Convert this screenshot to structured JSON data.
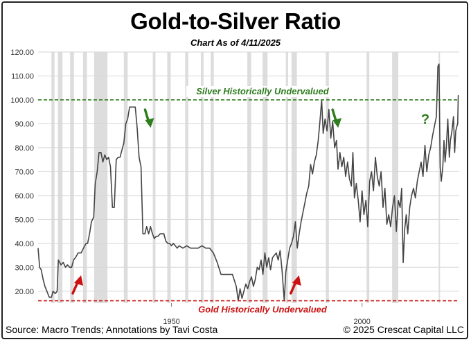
{
  "header": {
    "title": "Gold-to-Silver Ratio",
    "subtitle": "Chart As of 4/11/2025"
  },
  "footer": {
    "source": "Source: Macro Trends; Annotations by Tavi Costa",
    "copyright": "© 2025 Crescat Capital LLC"
  },
  "colors": {
    "line": "#444444",
    "upper_ref": "#2e7d1e",
    "lower_ref": "#cc1111",
    "recession_band": "#dddddd",
    "grid": "#d6d6d6"
  },
  "chart_data": {
    "type": "line",
    "xlim": [
      1915,
      2025.5
    ],
    "ylim": [
      15,
      120
    ],
    "yticks": [
      20,
      30,
      40,
      50,
      60,
      70,
      80,
      90,
      100,
      110,
      120
    ],
    "ytick_labels": [
      "20.00",
      "30.00",
      "40.00",
      "50.00",
      "60.00",
      "70.00",
      "80.00",
      "90.00",
      "100.00",
      "110.00",
      "120.00"
    ],
    "xticks": [
      1950,
      2000
    ],
    "xtick_labels": [
      "1950",
      "2000"
    ],
    "grid": true,
    "series": [
      {
        "points": [
          [
            1915.0,
            38
          ],
          [
            1915.4,
            30
          ],
          [
            1915.8,
            29
          ],
          [
            1916.3,
            25
          ],
          [
            1916.8,
            22
          ],
          [
            1917.3,
            20
          ],
          [
            1917.9,
            17.5
          ],
          [
            1918.5,
            17.5
          ],
          [
            1918.9,
            20
          ],
          [
            1919.5,
            19
          ],
          [
            1920.0,
            20
          ],
          [
            1920.3,
            33
          ],
          [
            1920.7,
            32
          ],
          [
            1921.0,
            31
          ],
          [
            1921.6,
            32
          ],
          [
            1922.2,
            30
          ],
          [
            1922.7,
            31
          ],
          [
            1923.3,
            30
          ],
          [
            1923.8,
            30
          ],
          [
            1924.3,
            33
          ],
          [
            1924.8,
            34
          ],
          [
            1925.5,
            36
          ],
          [
            1926.3,
            36
          ],
          [
            1926.9,
            38
          ],
          [
            1927.6,
            40
          ],
          [
            1928.0,
            40
          ],
          [
            1928.5,
            44
          ],
          [
            1929.0,
            49
          ],
          [
            1929.6,
            51
          ],
          [
            1930.0,
            65
          ],
          [
            1930.5,
            70
          ],
          [
            1931.0,
            78
          ],
          [
            1931.5,
            78
          ],
          [
            1932.0,
            74
          ],
          [
            1932.5,
            77
          ],
          [
            1933.0,
            75
          ],
          [
            1933.5,
            76
          ],
          [
            1934.0,
            72
          ],
          [
            1934.5,
            55
          ],
          [
            1935.0,
            55
          ],
          [
            1935.5,
            75
          ],
          [
            1936.0,
            76
          ],
          [
            1936.5,
            76
          ],
          [
            1937.0,
            79
          ],
          [
            1937.5,
            82
          ],
          [
            1938.0,
            90
          ],
          [
            1938.5,
            92
          ],
          [
            1939.0,
            97
          ],
          [
            1939.5,
            97
          ],
          [
            1940.0,
            97
          ],
          [
            1940.5,
            97
          ],
          [
            1941.0,
            88
          ],
          [
            1941.5,
            76
          ],
          [
            1942.0,
            72
          ],
          [
            1942.5,
            44
          ],
          [
            1943.0,
            44
          ],
          [
            1943.5,
            47
          ],
          [
            1944.0,
            44
          ],
          [
            1944.5,
            47
          ],
          [
            1945.0,
            44
          ],
          [
            1945.5,
            42
          ],
          [
            1946.0,
            43
          ],
          [
            1946.5,
            43
          ],
          [
            1947.0,
            44
          ],
          [
            1947.5,
            44
          ],
          [
            1948.0,
            44
          ],
          [
            1948.5,
            41
          ],
          [
            1949.0,
            40
          ],
          [
            1949.5,
            40
          ],
          [
            1950.0,
            39
          ],
          [
            1950.5,
            40
          ],
          [
            1951.0,
            39
          ],
          [
            1951.5,
            38
          ],
          [
            1952.0,
            39
          ],
          [
            1953.0,
            38
          ],
          [
            1954.0,
            39
          ],
          [
            1955.0,
            38
          ],
          [
            1956.0,
            38
          ],
          [
            1957.0,
            38
          ],
          [
            1958.0,
            39
          ],
          [
            1959.0,
            38
          ],
          [
            1960.0,
            38
          ],
          [
            1961.0,
            36
          ],
          [
            1962.0,
            32
          ],
          [
            1963.0,
            27
          ],
          [
            1964.0,
            27
          ],
          [
            1965.0,
            27
          ],
          [
            1966.0,
            27
          ],
          [
            1967.0,
            22
          ],
          [
            1967.5,
            16
          ],
          [
            1968.0,
            21
          ],
          [
            1968.5,
            17
          ],
          [
            1969.0,
            20
          ],
          [
            1969.5,
            23
          ],
          [
            1970.0,
            21
          ],
          [
            1970.5,
            24
          ],
          [
            1971.0,
            26
          ],
          [
            1971.5,
            22
          ],
          [
            1972.0,
            25
          ],
          [
            1972.5,
            30
          ],
          [
            1973.0,
            29
          ],
          [
            1973.5,
            33
          ],
          [
            1974.0,
            27
          ],
          [
            1974.5,
            36
          ],
          [
            1975.0,
            30
          ],
          [
            1975.5,
            34
          ],
          [
            1976.0,
            29
          ],
          [
            1976.5,
            34
          ],
          [
            1977.0,
            35
          ],
          [
            1977.5,
            36
          ],
          [
            1978.0,
            33
          ],
          [
            1978.5,
            37
          ],
          [
            1979.0,
            29
          ],
          [
            1979.6,
            16
          ],
          [
            1980.0,
            28
          ],
          [
            1980.5,
            33
          ],
          [
            1981.0,
            38
          ],
          [
            1981.5,
            40
          ],
          [
            1982.0,
            43
          ],
          [
            1982.5,
            49
          ],
          [
            1983.0,
            38
          ],
          [
            1983.5,
            44
          ],
          [
            1984.0,
            49
          ],
          [
            1984.5,
            53
          ],
          [
            1985.0,
            57
          ],
          [
            1985.5,
            61
          ],
          [
            1986.0,
            64
          ],
          [
            1986.5,
            73
          ],
          [
            1987.0,
            69
          ],
          [
            1987.5,
            74
          ],
          [
            1988.0,
            77
          ],
          [
            1988.5,
            83
          ],
          [
            1989.0,
            92
          ],
          [
            1989.4,
            100
          ],
          [
            1989.8,
            86
          ],
          [
            1990.3,
            92
          ],
          [
            1990.8,
            87
          ],
          [
            1991.3,
            96
          ],
          [
            1991.8,
            84
          ],
          [
            1992.3,
            91
          ],
          [
            1992.8,
            80
          ],
          [
            1993.3,
            83
          ],
          [
            1993.7,
            71
          ],
          [
            1994.2,
            78
          ],
          [
            1994.7,
            72
          ],
          [
            1995.2,
            76
          ],
          [
            1995.7,
            68
          ],
          [
            1996.2,
            74
          ],
          [
            1996.7,
            67
          ],
          [
            1997.2,
            64
          ],
          [
            1997.6,
            78
          ],
          [
            1998.0,
            59
          ],
          [
            1998.5,
            65
          ],
          [
            1999.0,
            58
          ],
          [
            1999.5,
            49
          ],
          [
            2000.0,
            62
          ],
          [
            2000.5,
            52
          ],
          [
            2001.0,
            58
          ],
          [
            2001.5,
            47
          ],
          [
            2002.0,
            66
          ],
          [
            2002.5,
            70
          ],
          [
            2003.0,
            62
          ],
          [
            2003.5,
            76
          ],
          [
            2004.0,
            68
          ],
          [
            2004.5,
            64
          ],
          [
            2005.0,
            70
          ],
          [
            2005.5,
            55
          ],
          [
            2006.0,
            63
          ],
          [
            2006.5,
            48
          ],
          [
            2007.0,
            52
          ],
          [
            2007.5,
            47
          ],
          [
            2008.0,
            55
          ],
          [
            2008.5,
            60
          ],
          [
            2009.0,
            45
          ],
          [
            2009.5,
            58
          ],
          [
            2010.0,
            55
          ],
          [
            2010.4,
            63
          ],
          [
            2010.8,
            32
          ],
          [
            2011.2,
            46
          ],
          [
            2011.6,
            52
          ],
          [
            2012.0,
            44
          ],
          [
            2012.5,
            55
          ],
          [
            2013.0,
            60
          ],
          [
            2013.5,
            63
          ],
          [
            2014.0,
            59
          ],
          [
            2014.5,
            66
          ],
          [
            2015.0,
            70
          ],
          [
            2015.5,
            74
          ],
          [
            2016.0,
            68
          ],
          [
            2016.5,
            81
          ],
          [
            2017.0,
            70
          ],
          [
            2017.5,
            77
          ],
          [
            2018.0,
            80
          ],
          [
            2018.5,
            85
          ],
          [
            2019.0,
            89
          ],
          [
            2019.5,
            93
          ],
          [
            2019.9,
            114
          ],
          [
            2020.2,
            115
          ],
          [
            2020.5,
            72
          ],
          [
            2020.8,
            66
          ],
          [
            2021.2,
            72
          ],
          [
            2021.5,
            83
          ],
          [
            2021.8,
            74
          ],
          [
            2022.1,
            80
          ],
          [
            2022.5,
            92
          ],
          [
            2022.9,
            76
          ],
          [
            2023.2,
            83
          ],
          [
            2023.6,
            87
          ],
          [
            2024.0,
            93
          ],
          [
            2024.3,
            78
          ],
          [
            2024.6,
            87
          ],
          [
            2024.9,
            89
          ],
          [
            2025.1,
            90
          ],
          [
            2025.25,
            102
          ]
        ]
      }
    ],
    "recession_bands": [
      [
        1918.5,
        1919.3
      ],
      [
        1920.2,
        1921.4
      ],
      [
        1923.4,
        1924.4
      ],
      [
        1926.8,
        1927.8
      ],
      [
        1929.7,
        1933.2
      ],
      [
        1937.5,
        1938.5
      ],
      [
        1945.1,
        1945.8
      ],
      [
        1948.9,
        1949.8
      ],
      [
        1953.6,
        1954.4
      ],
      [
        1957.7,
        1958.4
      ],
      [
        1960.3,
        1961.1
      ],
      [
        1969.9,
        1970.9
      ],
      [
        1973.9,
        1975.2
      ],
      [
        1980.0,
        1980.6
      ],
      [
        1981.5,
        1982.9
      ],
      [
        1990.5,
        1991.3
      ],
      [
        2001.2,
        2001.9
      ],
      [
        2007.9,
        2009.5
      ],
      [
        2020.1,
        2020.4
      ]
    ],
    "reference_lines": [
      {
        "y": 100,
        "label": "Silver Historically Undervalued",
        "color": "#2e7d1e"
      },
      {
        "y": 16,
        "label": "Gold Historically Undervalued",
        "color": "#cc1111"
      }
    ],
    "annotations": [
      {
        "kind": "arrow",
        "direction": "down",
        "color": "#2e7d1e",
        "x": 1943.8,
        "y": 93
      },
      {
        "kind": "arrow",
        "direction": "down",
        "color": "#2e7d1e",
        "x": 1993.0,
        "y": 93
      },
      {
        "kind": "arrow",
        "direction": "up",
        "color": "#cc1111",
        "x": 1925.0,
        "y": 22
      },
      {
        "kind": "arrow",
        "direction": "up",
        "color": "#cc1111",
        "x": 1982.2,
        "y": 22
      },
      {
        "kind": "text",
        "text": "?",
        "color": "#2e7d1e",
        "x": 2030.0,
        "y": 92
      }
    ]
  }
}
